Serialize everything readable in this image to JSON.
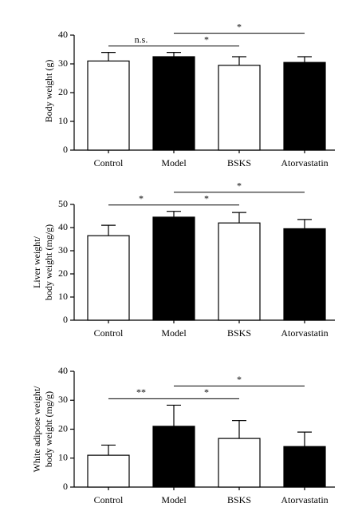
{
  "chart_data": [
    {
      "type": "bar",
      "ylabel": [
        "Body weight (g)"
      ],
      "categories": [
        "Control",
        "Model",
        "BSKS",
        "Atorvastatin"
      ],
      "values": [
        31,
        32.5,
        29.5,
        30.5
      ],
      "errors": [
        3,
        1.5,
        3,
        2
      ],
      "colors": [
        "#ffffff",
        "#000000",
        "#ffffff",
        "#000000"
      ],
      "ylim": [
        0,
        40
      ],
      "yticks": [
        0,
        10,
        20,
        30,
        40
      ],
      "annotations": [
        {
          "label": "n.s.",
          "groups": [
            "Control",
            "Model"
          ]
        },
        {
          "label": "*",
          "groups": [
            "Model",
            "BSKS"
          ]
        },
        {
          "label": "*",
          "groups": [
            "Model",
            "Atorvastatin"
          ]
        }
      ]
    },
    {
      "type": "bar",
      "ylabel": [
        "Liver weight/",
        "body weight (mg/g)"
      ],
      "categories": [
        "Control",
        "Model",
        "BSKS",
        "Atorvastatin"
      ],
      "values": [
        36.5,
        44.5,
        42,
        39.5
      ],
      "errors": [
        4.5,
        2.5,
        4.5,
        4
      ],
      "colors": [
        "#ffffff",
        "#000000",
        "#ffffff",
        "#000000"
      ],
      "ylim": [
        0,
        50
      ],
      "yticks": [
        0,
        10,
        20,
        30,
        40,
        50
      ],
      "annotations": [
        {
          "label": "*",
          "groups": [
            "Control",
            "Model"
          ]
        },
        {
          "label": "*",
          "groups": [
            "Model",
            "BSKS"
          ]
        },
        {
          "label": "*",
          "groups": [
            "Model",
            "Atorvastatin"
          ]
        }
      ]
    },
    {
      "type": "bar",
      "ylabel": [
        "White adipose weight/",
        "body weight (mg/g)"
      ],
      "categories": [
        "Control",
        "Model",
        "BSKS",
        "Atorvastatin"
      ],
      "values": [
        11,
        21,
        16.8,
        14
      ],
      "errors": [
        3.5,
        7.3,
        6.2,
        5
      ],
      "colors": [
        "#ffffff",
        "#000000",
        "#ffffff",
        "#000000"
      ],
      "ylim": [
        0,
        40
      ],
      "yticks": [
        0,
        10,
        20,
        30,
        40
      ],
      "annotations": [
        {
          "label": "**",
          "groups": [
            "Control",
            "Model"
          ]
        },
        {
          "label": "*",
          "groups": [
            "Model",
            "BSKS"
          ]
        },
        {
          "label": "*",
          "groups": [
            "Model",
            "Atorvastatin"
          ]
        }
      ]
    }
  ]
}
